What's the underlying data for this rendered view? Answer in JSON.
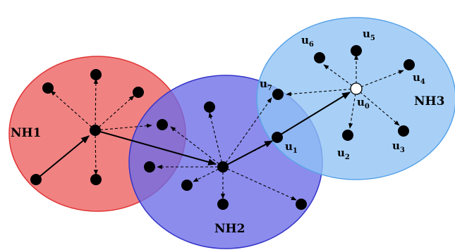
{
  "neighborhoods": [
    {
      "id": "NH1",
      "label": "NH1",
      "fill": "#f07b7b",
      "stroke": "#e03434"
    },
    {
      "id": "NH2",
      "label": "NH2",
      "fill": "#7474ec",
      "stroke": "#3434c8"
    },
    {
      "id": "NH3",
      "label": "NH3",
      "fill": "#99c9f7",
      "stroke": "#5aa3e8"
    }
  ],
  "node_labels": [
    {
      "id": "u0",
      "base": "u",
      "sub": "0"
    },
    {
      "id": "u1",
      "base": "u",
      "sub": "1"
    },
    {
      "id": "u2",
      "base": "u",
      "sub": "2"
    },
    {
      "id": "u3",
      "base": "u",
      "sub": "3"
    },
    {
      "id": "u4",
      "base": "u",
      "sub": "4"
    },
    {
      "id": "u5",
      "base": "u",
      "sub": "5"
    },
    {
      "id": "u6",
      "base": "u",
      "sub": "6"
    },
    {
      "id": "u7",
      "base": "u",
      "sub": "7"
    }
  ],
  "colors": {
    "node": "#000000",
    "hollow_node": "#ffffff",
    "edge": "#000000"
  }
}
